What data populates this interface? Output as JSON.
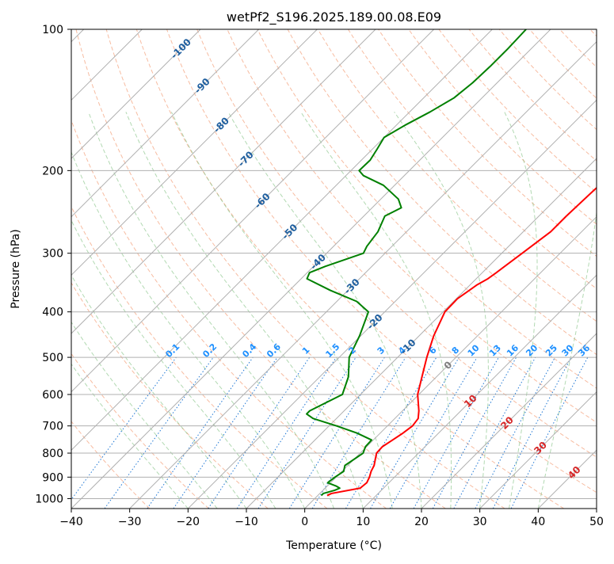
{
  "chart_data": {
    "type": "line",
    "title": "wetPf2_S196.2025.189.00.08.E09",
    "xlabel": "Temperature (°C)",
    "ylabel": "Pressure (hPa)",
    "xlim": [
      -40,
      50
    ],
    "ylim": [
      1050,
      100
    ],
    "y_scale": "log",
    "skew": "skew-T log-p",
    "grid": true,
    "x_ticks": [
      -40,
      -30,
      -20,
      -10,
      0,
      10,
      20,
      30,
      40,
      50
    ],
    "x_tick_labels": [
      "−40",
      "−30",
      "−20",
      "−10",
      "0",
      "10",
      "20",
      "30",
      "40",
      "50"
    ],
    "y_ticks": [
      1000,
      900,
      800,
      700,
      600,
      500,
      400,
      300,
      200,
      100
    ],
    "y_tick_labels": [
      "1000",
      "900",
      "800",
      "700",
      "600",
      "500",
      "400",
      "300",
      "200",
      "100"
    ],
    "isotherm_labels": [
      "-100",
      "-90",
      "-80",
      "-70",
      "-60",
      "-50",
      "-40",
      "-30",
      "-20",
      "-10",
      "0",
      "10",
      "20",
      "30",
      "40"
    ],
    "mixing_ratio_labels": [
      "0.1",
      "0.2",
      "0.4",
      "0.6",
      "1",
      "1.5",
      "2",
      "3",
      "4",
      "6",
      "8",
      "10",
      "13",
      "16",
      "20",
      "25",
      "30",
      "36"
    ],
    "mixing_ratio_values": [
      0.1,
      0.2,
      0.4,
      0.6,
      1,
      1.5,
      2,
      3,
      4,
      6,
      8,
      10,
      13,
      16,
      20,
      25,
      30,
      36
    ],
    "series": [
      {
        "color": "#ff0000",
        "pressure": [
          985,
          975,
          950,
          925,
          900,
          875,
          850,
          800,
          775,
          750,
          725,
          700,
          675,
          650,
          600,
          550,
          500,
          450,
          400,
          375,
          360,
          350,
          340,
          330,
          300,
          270,
          250,
          220,
          200,
          180,
          160,
          140,
          125,
          110,
          100
        ],
        "temperature": [
          1.6,
          2.0,
          6.0,
          6.2,
          5.7,
          5.0,
          4.5,
          2.8,
          2.7,
          3.3,
          3.9,
          4.3,
          4.0,
          2.8,
          -0.2,
          -2.5,
          -5.0,
          -7.5,
          -9.7,
          -9.8,
          -9.2,
          -8.8,
          -8.0,
          -7.6,
          -6.5,
          -5.3,
          -5.3,
          -5.0,
          -4.5,
          -3.9,
          -2.8,
          -0.8,
          0.7,
          2.2,
          2.5
        ]
      },
      {
        "color": "#008000",
        "pressure": [
          985,
          975,
          960,
          950,
          940,
          925,
          900,
          875,
          850,
          800,
          775,
          750,
          725,
          700,
          675,
          660,
          650,
          600,
          550,
          500,
          450,
          400,
          380,
          360,
          340,
          330,
          320,
          300,
          290,
          270,
          250,
          240,
          230,
          215,
          205,
          200,
          190,
          180,
          170,
          160,
          150,
          140,
          130,
          120,
          110,
          100
        ],
        "temperature": [
          0.6,
          0.6,
          2.0,
          2.5,
          1.5,
          -0.5,
          -0.2,
          0.3,
          -0.5,
          0.5,
          -0.2,
          -0.3,
          -4.0,
          -8.7,
          -14.0,
          -15.9,
          -15.9,
          -13.1,
          -15.1,
          -18.3,
          -20.2,
          -22.8,
          -26.6,
          -33.0,
          -39.0,
          -39.6,
          -38.0,
          -33.7,
          -34.3,
          -34.9,
          -36.4,
          -35.0,
          -37.0,
          -41.9,
          -47.0,
          -48.6,
          -48.5,
          -49.2,
          -50.0,
          -48.5,
          -46.5,
          -44.8,
          -44.2,
          -44.0,
          -44.0,
          -44.2
        ]
      }
    ]
  }
}
